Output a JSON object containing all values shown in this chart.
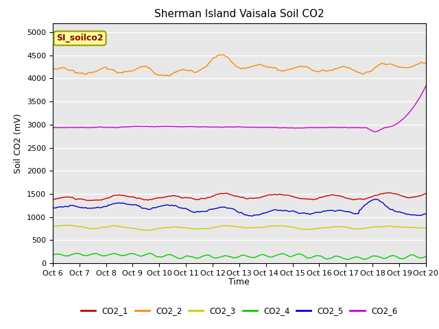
{
  "title": "Sherman Island Vaisala Soil CO2",
  "ylabel": "Soil CO2 (mV)",
  "xlabel": "Time",
  "watermark": "SI_soilco2",
  "ylim": [
    0,
    5200
  ],
  "yticks": [
    0,
    500,
    1000,
    1500,
    2000,
    2500,
    3000,
    3500,
    4000,
    4500,
    5000
  ],
  "x_labels": [
    "Oct 6",
    "Oct 7",
    "Oct 8",
    "Oct 9",
    "Oct 10",
    "Oct 11",
    "Oct 12",
    "Oct 13",
    "Oct 14",
    "Oct 15",
    "Oct 16",
    "Oct 17",
    "Oct 18",
    "Oct 19",
    "Oct 20"
  ],
  "n_points": 350,
  "legend_colors": {
    "CO2_1": "#cc0000",
    "CO2_2": "#ff8800",
    "CO2_3": "#cccc00",
    "CO2_4": "#00cc00",
    "CO2_5": "#0000cc",
    "CO2_6": "#cc00cc"
  },
  "background_color": "#e8e8e8",
  "fig_background": "#ffffff"
}
